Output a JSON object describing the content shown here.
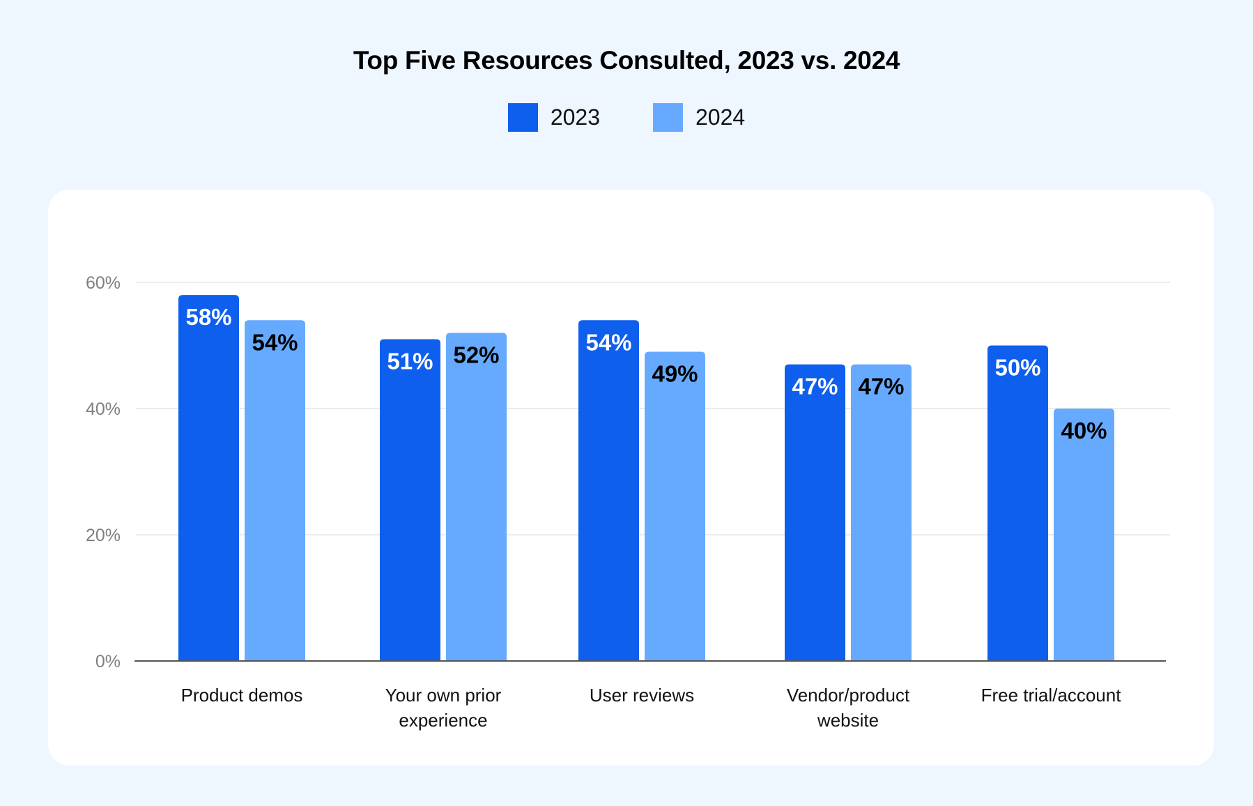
{
  "colors": {
    "background": "#eef6ff",
    "card": "#ffffff",
    "series_2023": "#0f5fef",
    "series_2024": "#66aaff",
    "grid": "#e6e6e6",
    "axis": "#555555",
    "label_on_dark": "#ffffff",
    "label_on_light": "#000000"
  },
  "chart_data": {
    "type": "bar",
    "title": "Top Five Resources Consulted, 2023 vs. 2024",
    "xlabel": "",
    "ylabel": "",
    "categories": [
      [
        "Product demos"
      ],
      [
        "Your own prior",
        "experience"
      ],
      [
        "User reviews"
      ],
      [
        "Vendor/product",
        "website"
      ],
      [
        "Free trial/account"
      ]
    ],
    "series": [
      {
        "name": "2023",
        "values": [
          58,
          51,
          54,
          47,
          50
        ],
        "labels": [
          "58%",
          "51%",
          "54%",
          "47%",
          "50%"
        ]
      },
      {
        "name": "2024",
        "values": [
          54,
          52,
          49,
          47,
          40
        ],
        "labels": [
          "54%",
          "52%",
          "49%",
          "47%",
          "40%"
        ]
      }
    ],
    "ylim": [
      0,
      60
    ],
    "yticks": [
      0,
      20,
      40,
      60
    ],
    "ytick_labels": [
      "0%",
      "20%",
      "40%",
      "60%"
    ],
    "grid": true,
    "legend_position": "top-center"
  }
}
